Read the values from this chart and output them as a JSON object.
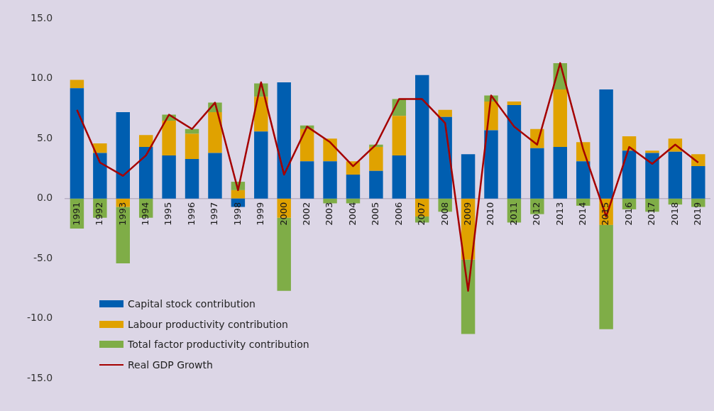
{
  "chart_data": {
    "type": "bar",
    "stacked": true,
    "categories": [
      "1991",
      "1992",
      "1993",
      "1994",
      "1995",
      "1996",
      "1997",
      "1998",
      "1999",
      "2000",
      "2002",
      "2003",
      "2004",
      "2005",
      "2006",
      "2007",
      "2008",
      "2009",
      "2010",
      "2011",
      "2012",
      "2013",
      "2014",
      "2015",
      "2016",
      "2017",
      "2018",
      "2019"
    ],
    "series": [
      {
        "name": "Capital stock contribution",
        "color": "#005eb0",
        "values": [
          9.2,
          3.8,
          7.2,
          4.3,
          3.6,
          3.3,
          3.8,
          -0.7,
          5.6,
          9.7,
          3.1,
          3.1,
          2.0,
          2.3,
          3.6,
          10.3,
          6.8,
          3.7,
          5.7,
          7.8,
          4.2,
          4.3,
          3.1,
          9.1,
          4.0,
          3.8,
          3.9,
          2.7
        ]
      },
      {
        "name": "Labour productivity contribution",
        "color": "#e0a200",
        "values": [
          0.7,
          0.8,
          -0.7,
          1.0,
          2.9,
          2.1,
          3.4,
          0.7,
          2.9,
          -1.6,
          2.7,
          1.9,
          1.1,
          2.0,
          3.3,
          -1.5,
          0.6,
          -5.1,
          2.4,
          0.3,
          1.6,
          4.8,
          1.6,
          -2.2,
          1.2,
          0.2,
          1.1,
          1.0
        ]
      },
      {
        "name": "Total factor productivity contribution",
        "color": "#7fad47",
        "values": [
          -2.5,
          -1.6,
          -4.7,
          -1.6,
          0.5,
          0.4,
          0.8,
          0.7,
          1.1,
          -6.1,
          0.3,
          -0.4,
          -0.4,
          0.2,
          1.4,
          -0.5,
          -1.1,
          -6.2,
          0.5,
          -2.0,
          -1.3,
          2.2,
          -0.6,
          -8.7,
          -0.9,
          -1.1,
          -0.5,
          -0.7
        ]
      },
      {
        "name": "Real GDP Growth",
        "type": "line",
        "color": "#a50000",
        "values": [
          7.4,
          3.0,
          1.9,
          3.6,
          7.0,
          5.8,
          8.0,
          0.7,
          9.7,
          2.0,
          6.0,
          4.7,
          2.7,
          4.5,
          8.3,
          8.3,
          6.3,
          -7.7,
          8.6,
          6.0,
          4.5,
          11.3,
          4.1,
          -1.5,
          4.3,
          2.9,
          4.5,
          3.0
        ]
      }
    ],
    "ylim": [
      -15,
      15
    ],
    "yticks": [
      {
        "value": 15,
        "label": "15.0"
      },
      {
        "value": 10,
        "label": "10.0"
      },
      {
        "value": 5,
        "label": "5.0"
      },
      {
        "value": 0,
        "label": "0.0"
      },
      {
        "value": -5,
        "label": "-5.0"
      },
      {
        "value": -10,
        "label": "-10.0"
      },
      {
        "value": -15,
        "label": "-15.0"
      }
    ],
    "grid": false,
    "legend": "bottom left",
    "marker": "none",
    "line_style": "solid"
  }
}
